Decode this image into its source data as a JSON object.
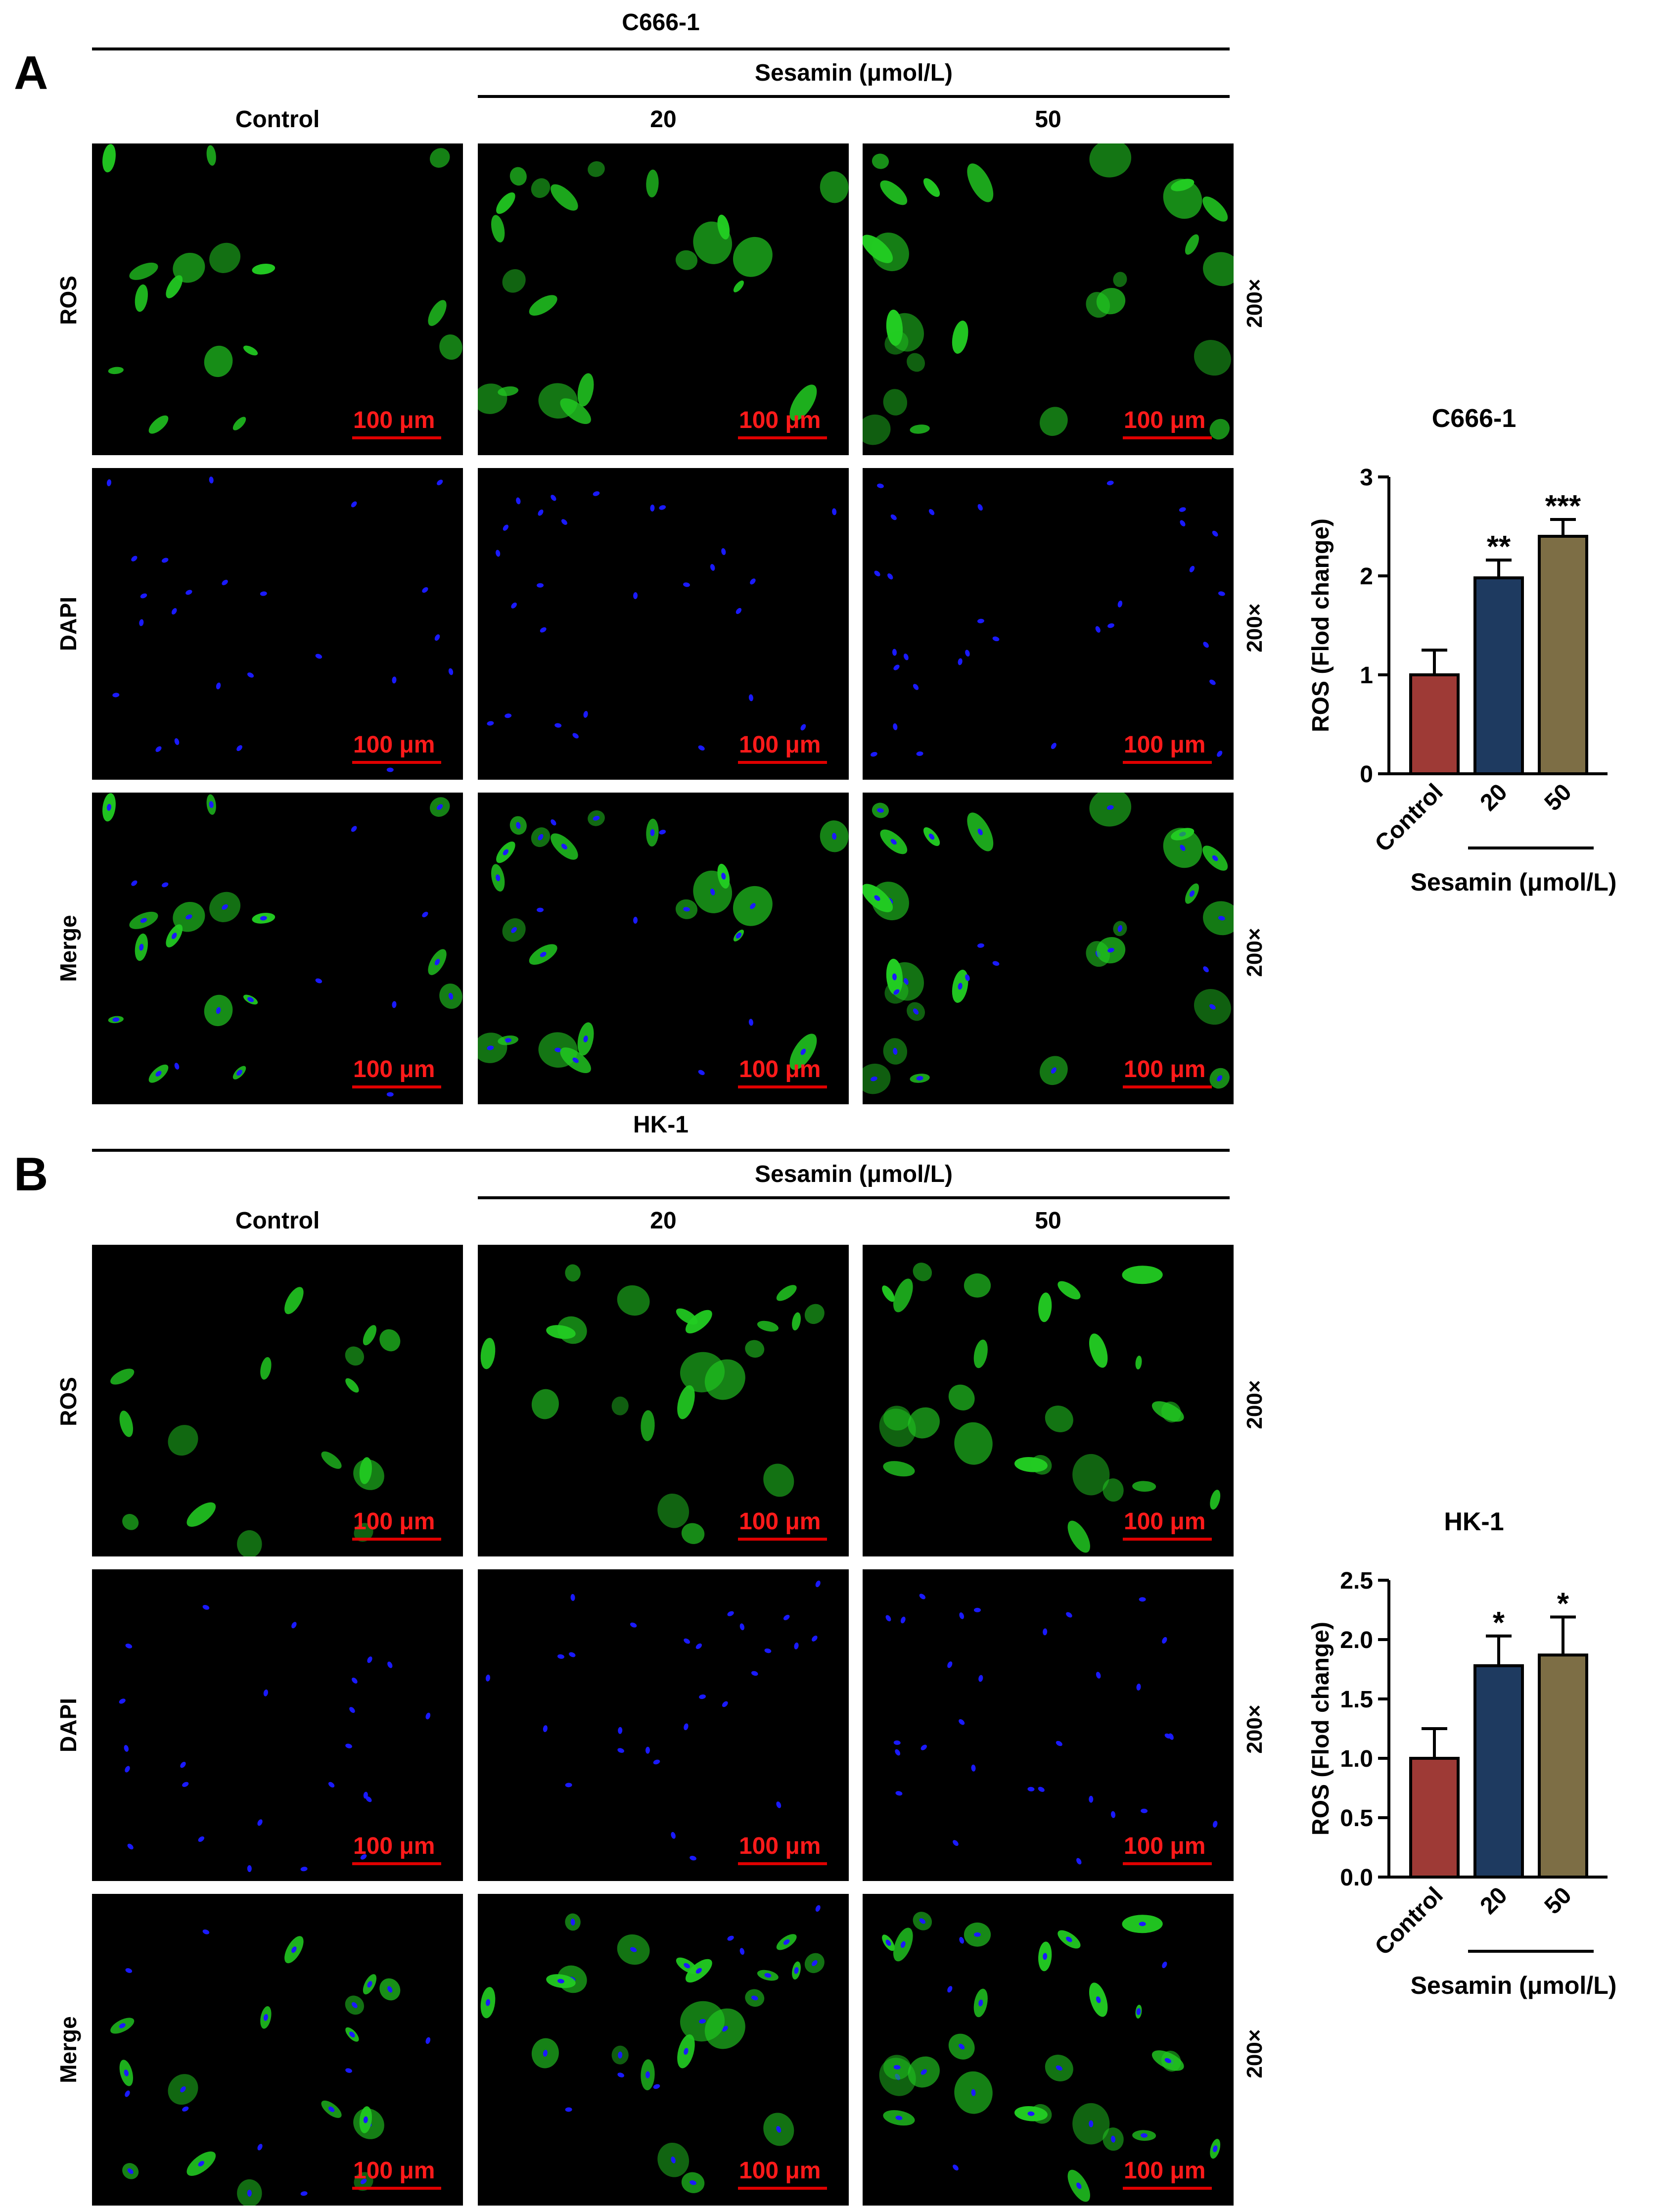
{
  "panels": [
    {
      "letter": "A",
      "cell_line": "C666-1",
      "treatment_header": "Sesamin (μmol/L)",
      "columns": [
        "Control",
        "20",
        "50"
      ],
      "rows": [
        "ROS",
        "DAPI",
        "Merge"
      ],
      "magnification": "200×",
      "scale_bar": "100 μm"
    },
    {
      "letter": "B",
      "cell_line": "HK-1",
      "treatment_header": "Sesamin (μmol/L)",
      "columns": [
        "Control",
        "20",
        "50"
      ],
      "rows": [
        "ROS",
        "DAPI",
        "Merge"
      ],
      "magnification": "200×",
      "scale_bar": "100 μm"
    }
  ],
  "colors": {
    "ros_green": "#22cc22",
    "dapi_blue": "#1a1aff",
    "scale_red": "#ff1a1a",
    "bar_control": "#9e3a36",
    "bar_20": "#1e3a60",
    "bar_50": "#7d6e45"
  },
  "chart_data": [
    {
      "type": "bar",
      "title": "C666-1",
      "ylabel": "ROS (Flod change)",
      "xlabel": "",
      "group_label": "Sesamin (μmol/L)",
      "categories": [
        "Control",
        "20",
        "50"
      ],
      "values": [
        1.0,
        1.98,
        2.4
      ],
      "errors": [
        0.25,
        0.18,
        0.17
      ],
      "significance": [
        "",
        "**",
        "***"
      ],
      "ylim": [
        0,
        3
      ],
      "yticks": [
        "0",
        "1",
        "2",
        "3"
      ],
      "ytick_values": [
        0,
        1,
        2,
        3
      ],
      "grid": false
    },
    {
      "type": "bar",
      "title": "HK-1",
      "ylabel": "ROS (Flod change)",
      "xlabel": "",
      "group_label": "Sesamin (μmol/L)",
      "categories": [
        "Control",
        "20",
        "50"
      ],
      "values": [
        1.0,
        1.78,
        1.87
      ],
      "errors": [
        0.25,
        0.25,
        0.32
      ],
      "significance": [
        "",
        "*",
        "*"
      ],
      "ylim": [
        0,
        2.5
      ],
      "yticks": [
        "0.0",
        "0.5",
        "1.0",
        "1.5",
        "2.0",
        "2.5"
      ],
      "ytick_values": [
        0,
        0.5,
        1.0,
        1.5,
        2.0,
        2.5
      ],
      "grid": false
    }
  ]
}
